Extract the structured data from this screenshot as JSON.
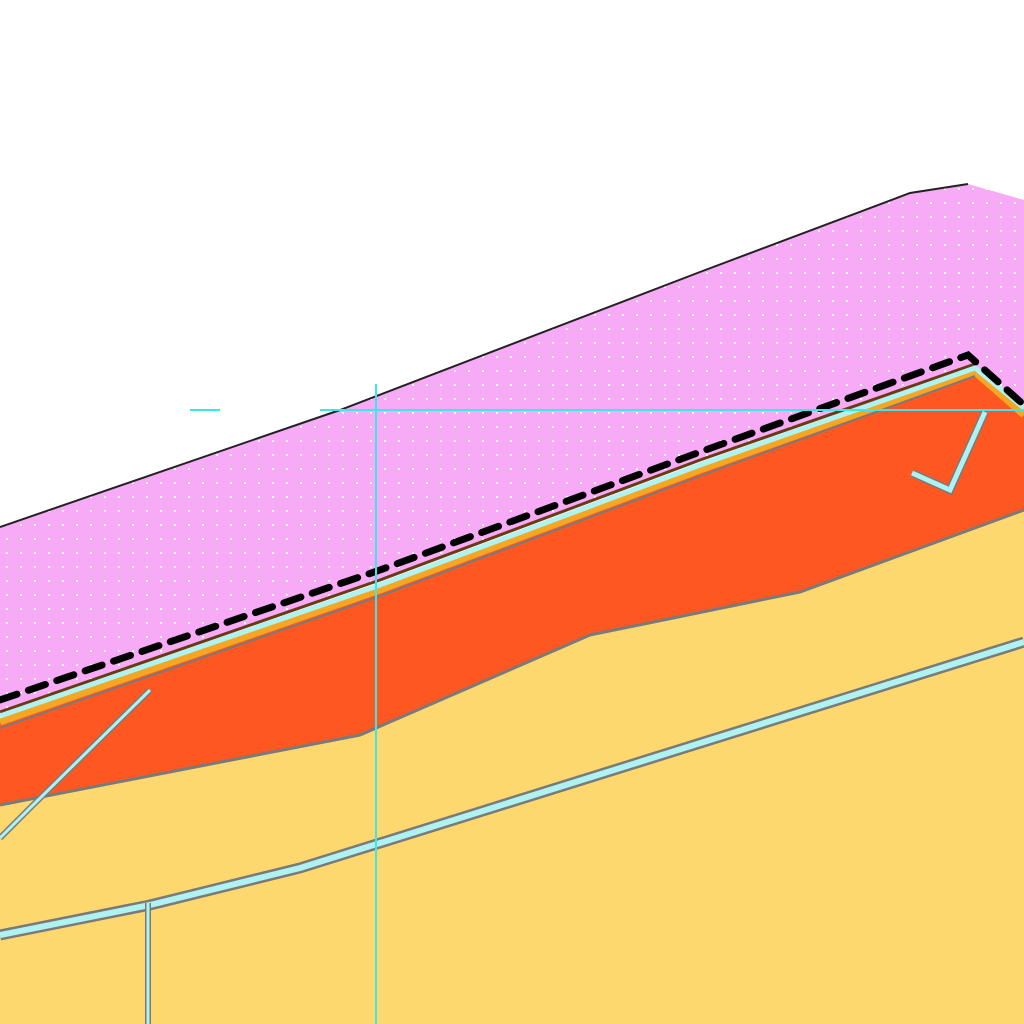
{
  "map": {
    "type": "land-use zoning map tile",
    "labels": [],
    "colors": {
      "background": "#ffffff",
      "pink_zone": "#f7aaf5",
      "pink_dot": "#ffffff",
      "red_zone": "#ff5722",
      "yellow_zone": "#fdd86f",
      "parcel_outline": "#7a7a7a",
      "road_cyan": "#aef2f2",
      "guide_line": "#3ee6e6",
      "boundary_dark": "#222222",
      "edge_brown": "#6b3a12",
      "edge_orange": "#f5a623",
      "dash_black": "#000000"
    },
    "layers": [
      "pink-residential-zone",
      "red-commercial-zone",
      "yellow-residential-zone",
      "road-corridor",
      "parcel-lines",
      "dashed-boundary",
      "cyan-guide-lines"
    ]
  }
}
